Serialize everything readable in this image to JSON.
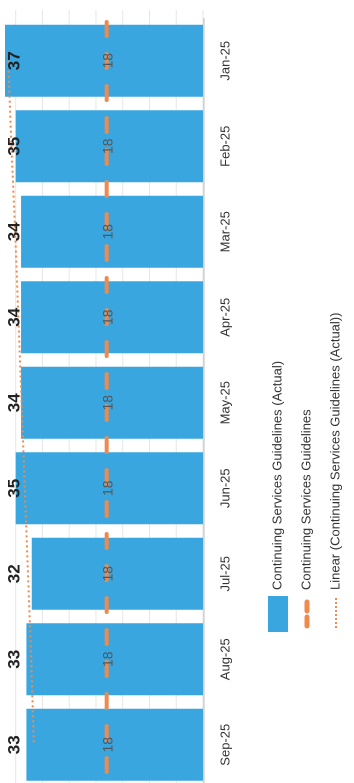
{
  "chart_data": {
    "type": "bar",
    "orientation": "rotated-90-clockwise",
    "title": "",
    "categories": [
      "Jan-25",
      "Feb-25",
      "Mar-25",
      "Apr-25",
      "May-25",
      "Jun-25",
      "Jul-25",
      "Aug-25",
      "Sep-25"
    ],
    "series": [
      {
        "name": "Continuing Services Guidelines (Actual)",
        "kind": "bar",
        "color": "#3aa6e0",
        "values": [
          37,
          35,
          34,
          34,
          34,
          35,
          32,
          33,
          33
        ],
        "data_labels": [
          "37",
          "35",
          "34",
          "34",
          "34",
          "35",
          "32",
          "33",
          "33"
        ]
      },
      {
        "name": "Continuing Services Guidelines",
        "kind": "line",
        "color": "#ee8a4e",
        "values": [
          18,
          18,
          18,
          18,
          18,
          18,
          18,
          18,
          18
        ],
        "data_labels": [
          "18",
          "18",
          "18",
          "18",
          "18",
          "18",
          "18",
          "18",
          "18"
        ]
      },
      {
        "name": "Linear (Continuing Services Guidelines (Actual))",
        "kind": "trendline",
        "color": "#ee8a4e",
        "values": [
          36.4,
          35.8,
          35.1,
          34.5,
          33.9,
          33.3,
          32.7,
          32.1,
          31.6
        ]
      }
    ],
    "ylim": [
      0,
      37
    ],
    "grid": true,
    "legend": "below"
  }
}
